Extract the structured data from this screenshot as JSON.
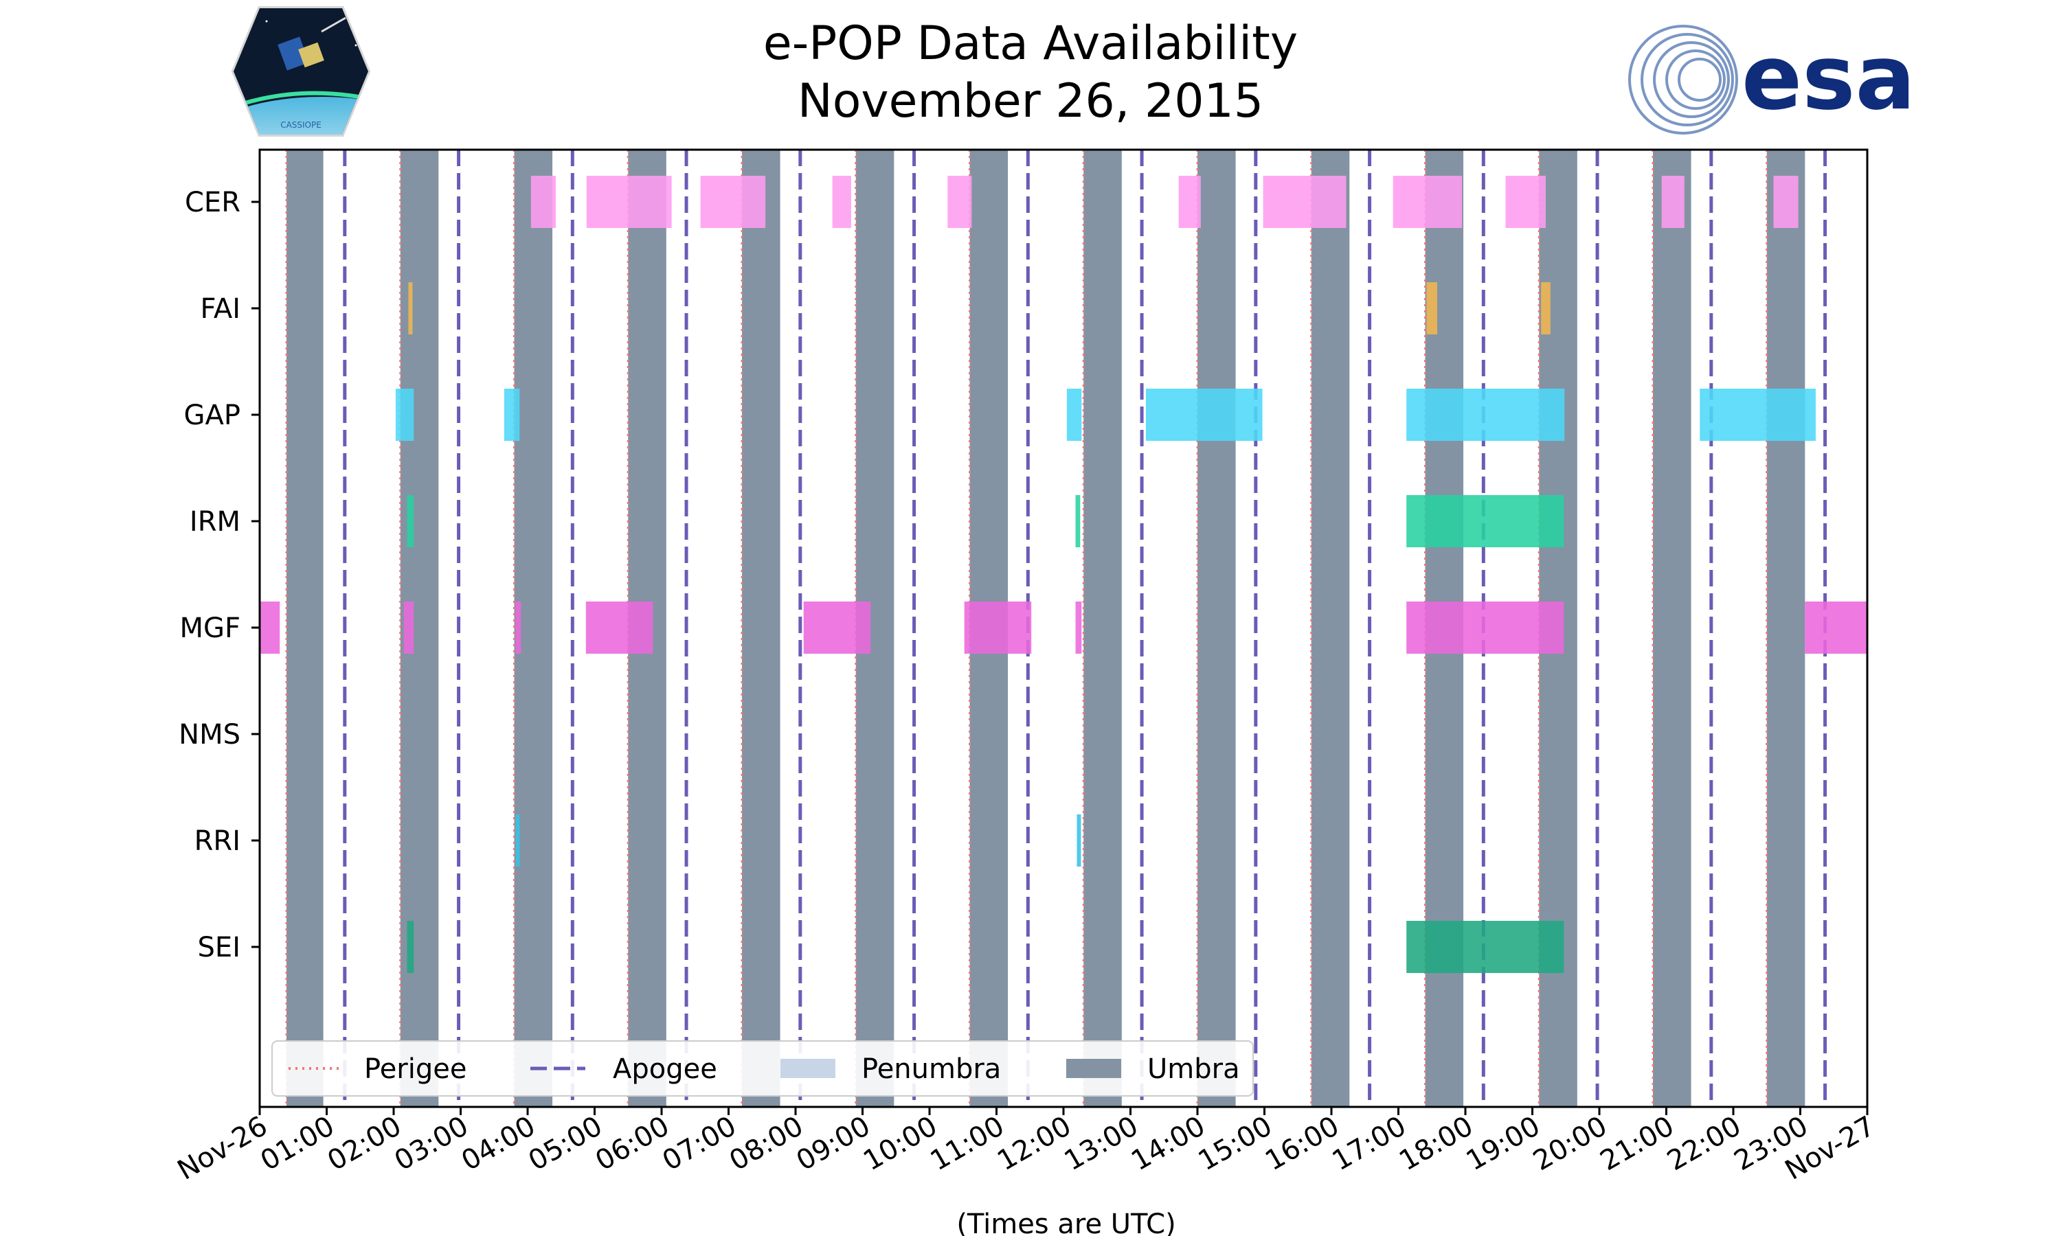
{
  "chart_data": {
    "type": "timeline",
    "title": "e-POP Data Availability",
    "subtitle": "November 26, 2015",
    "xlabel": "(Times are UTC)",
    "x_range_hours": [
      0,
      24
    ],
    "x_tick_labels": [
      "Nov-26",
      "01:00",
      "02:00",
      "03:00",
      "04:00",
      "05:00",
      "06:00",
      "07:00",
      "08:00",
      "09:00",
      "10:00",
      "11:00",
      "12:00",
      "13:00",
      "14:00",
      "15:00",
      "16:00",
      "17:00",
      "18:00",
      "19:00",
      "20:00",
      "21:00",
      "22:00",
      "23:00",
      "Nov-27"
    ],
    "instruments": [
      "CER",
      "FAI",
      "GAP",
      "IRM",
      "MGF",
      "NMS",
      "RRI",
      "SEI"
    ],
    "colors": {
      "CER": "#ff9cf0",
      "FAI": "#f0b650",
      "GAP": "#4dd8f8",
      "IRM": "#28d2a0",
      "MGF": "#ec68dd",
      "NMS": "#888888",
      "RRI": "#36c3e8",
      "SEI": "#20a882",
      "umbra": "#8393a3",
      "penumbra": "#c7d5e6",
      "perigee": "#f07575",
      "apogee": "#6a5cb6"
    },
    "umbra": [
      [
        0.4,
        0.95
      ],
      [
        2.1,
        2.67
      ],
      [
        3.8,
        4.37
      ],
      [
        5.5,
        6.07
      ],
      [
        7.2,
        7.77
      ],
      [
        8.9,
        9.47
      ],
      [
        10.6,
        11.17
      ],
      [
        12.3,
        12.87
      ],
      [
        14.0,
        14.57
      ],
      [
        15.7,
        16.27
      ],
      [
        17.4,
        17.97
      ],
      [
        19.1,
        19.67
      ],
      [
        20.8,
        21.37
      ],
      [
        22.5,
        23.07
      ]
    ],
    "perigee": [
      0.4,
      2.1,
      3.8,
      5.5,
      7.2,
      8.9,
      10.6,
      12.3,
      14.0,
      15.7,
      17.4,
      19.1,
      20.8,
      22.5
    ],
    "apogee": [
      1.27,
      2.97,
      4.67,
      6.37,
      8.07,
      9.77,
      11.47,
      13.17,
      14.87,
      16.57,
      18.27,
      19.97,
      21.67,
      23.37
    ],
    "data_intervals": {
      "CER": [
        [
          4.05,
          4.42
        ],
        [
          4.88,
          6.15
        ],
        [
          6.58,
          7.55
        ],
        [
          8.55,
          8.83
        ],
        [
          10.27,
          10.63
        ],
        [
          13.72,
          14.05
        ],
        [
          14.98,
          16.22
        ],
        [
          16.92,
          17.95
        ],
        [
          18.6,
          19.2
        ],
        [
          20.93,
          21.27
        ],
        [
          22.6,
          22.97
        ]
      ],
      "FAI": [
        [
          2.22,
          2.28
        ],
        [
          17.42,
          17.58
        ],
        [
          19.13,
          19.27
        ]
      ],
      "GAP": [
        [
          2.03,
          2.3
        ],
        [
          3.65,
          3.88
        ],
        [
          12.05,
          12.27
        ],
        [
          13.23,
          14.97
        ],
        [
          17.12,
          19.48
        ],
        [
          21.5,
          23.23
        ]
      ],
      "IRM": [
        [
          2.2,
          2.3
        ],
        [
          12.18,
          12.25
        ],
        [
          17.12,
          19.47
        ]
      ],
      "MGF": [
        [
          0.0,
          0.3
        ],
        [
          2.15,
          2.3
        ],
        [
          3.82,
          3.9
        ],
        [
          4.87,
          5.87
        ],
        [
          8.12,
          9.12
        ],
        [
          10.52,
          11.52
        ],
        [
          12.18,
          12.27
        ],
        [
          17.12,
          19.47
        ],
        [
          23.07,
          24.0
        ]
      ],
      "NMS": [],
      "RRI": [
        [
          3.82,
          3.88
        ],
        [
          12.2,
          12.25
        ]
      ],
      "SEI": [
        [
          2.2,
          2.3
        ],
        [
          17.12,
          19.47
        ]
      ]
    },
    "legend": {
      "placement": "lower-left",
      "items": [
        "Perigee",
        "Apogee",
        "Penumbra",
        "Umbra"
      ]
    },
    "logos": {
      "left_caption": "CASSIOPE",
      "right_text": "esa"
    }
  }
}
